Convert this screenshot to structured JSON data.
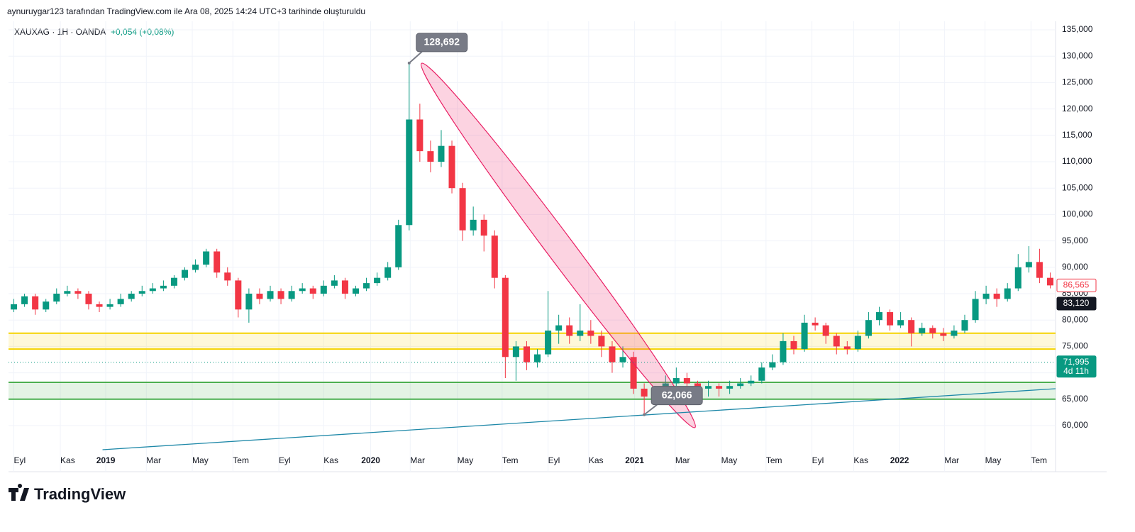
{
  "header": "aynuruygar123 tarafından TradingView.com ile Ara 08, 2025 14:24 UTC+3 tarihinde oluşturuldu",
  "logo": "TradingView",
  "chart_data": {
    "type": "candlestick",
    "title": "XAUXAG · 1H · OANDA",
    "change": "+0,054 (+0,08%)",
    "up_color": "#089981",
    "down_color": "#f23645",
    "xlim": [
      -0.5,
      97.5
    ],
    "ylim": [
      51263,
      136613
    ],
    "yticks": [
      {
        "value": 60000,
        "label": "60,000"
      },
      {
        "value": 65000,
        "label": "65,000"
      },
      {
        "value": 70000,
        "label": "70,000"
      },
      {
        "value": 75000,
        "label": "75,000"
      },
      {
        "value": 80000,
        "label": "80,000"
      },
      {
        "value": 85000,
        "label": "85,000"
      },
      {
        "value": 90000,
        "label": "90,000"
      },
      {
        "value": 95000,
        "label": "95,000"
      },
      {
        "value": 100000,
        "label": "100,000"
      },
      {
        "value": 105000,
        "label": "105,000"
      },
      {
        "value": 110000,
        "label": "110,000"
      },
      {
        "value": 115000,
        "label": "115,000"
      },
      {
        "value": 120000,
        "label": "120,000"
      },
      {
        "value": 125000,
        "label": "125,000"
      },
      {
        "value": 130000,
        "label": "130,000"
      },
      {
        "value": 135000,
        "label": "135,000"
      }
    ],
    "xticks": [
      {
        "value": 0,
        "label": "Eyl"
      },
      {
        "value": 4.35,
        "label": "Kas"
      },
      {
        "value": 8.6,
        "label": "2019"
      },
      {
        "value": 12.4,
        "label": "Mar"
      },
      {
        "value": 16.7,
        "label": "May"
      },
      {
        "value": 20.5,
        "label": "Tem"
      },
      {
        "value": 24.8,
        "label": "Eyl"
      },
      {
        "value": 29,
        "label": "Kas"
      },
      {
        "value": 33.4,
        "label": "2020"
      },
      {
        "value": 37.1,
        "label": "Mar"
      },
      {
        "value": 41.5,
        "label": "May"
      },
      {
        "value": 45.7,
        "label": "Tem"
      },
      {
        "value": 50,
        "label": "Eyl"
      },
      {
        "value": 53.8,
        "label": "Kas"
      },
      {
        "value": 58.1,
        "label": "2021"
      },
      {
        "value": 61.9,
        "label": "Mar"
      },
      {
        "value": 66.2,
        "label": "May"
      },
      {
        "value": 70.4,
        "label": "Tem"
      },
      {
        "value": 74.7,
        "label": "Eyl"
      },
      {
        "value": 78.6,
        "label": "Kas"
      },
      {
        "value": 82.9,
        "label": "2022"
      },
      {
        "value": 87.1,
        "label": "Mar"
      },
      {
        "value": 90.9,
        "label": "May"
      },
      {
        "value": 95.2,
        "label": "Tem"
      }
    ],
    "grid": true,
    "ohlc": [
      [
        82000,
        84000,
        81500,
        83000
      ],
      [
        83000,
        85000,
        82500,
        84500
      ],
      [
        84500,
        85000,
        81000,
        82000
      ],
      [
        82000,
        84000,
        81500,
        83500
      ],
      [
        83500,
        86000,
        83000,
        85000
      ],
      [
        85000,
        86500,
        84500,
        85500
      ],
      [
        85500,
        86000,
        84000,
        85000
      ],
      [
        85000,
        85500,
        82000,
        83000
      ],
      [
        83000,
        83500,
        81500,
        82500
      ],
      [
        82500,
        84000,
        82000,
        83000
      ],
      [
        83000,
        85000,
        82500,
        84000
      ],
      [
        84000,
        85500,
        83500,
        85000
      ],
      [
        85000,
        86500,
        84500,
        85500
      ],
      [
        85500,
        87000,
        85000,
        86000
      ],
      [
        86000,
        87500,
        85500,
        86500
      ],
      [
        86500,
        88500,
        86000,
        88000
      ],
      [
        88000,
        90000,
        87500,
        89500
      ],
      [
        89500,
        91500,
        89000,
        90500
      ],
      [
        90500,
        93500,
        90000,
        93000
      ],
      [
        93000,
        93500,
        88000,
        89000
      ],
      [
        89000,
        90000,
        86500,
        87500
      ],
      [
        87500,
        88000,
        80500,
        82000
      ],
      [
        82000,
        86000,
        79500,
        85000
      ],
      [
        85000,
        86000,
        83000,
        84000
      ],
      [
        84000,
        86500,
        83500,
        85500
      ],
      [
        85500,
        86000,
        83000,
        84000
      ],
      [
        84000,
        86500,
        83500,
        85500
      ],
      [
        85500,
        87000,
        85000,
        86000
      ],
      [
        86000,
        86500,
        84000,
        85000
      ],
      [
        85000,
        87500,
        84500,
        86500
      ],
      [
        86500,
        88500,
        86000,
        87500
      ],
      [
        87500,
        88000,
        84000,
        85000
      ],
      [
        85000,
        86500,
        84500,
        86000
      ],
      [
        86000,
        88000,
        85500,
        87000
      ],
      [
        87000,
        89000,
        86500,
        88000
      ],
      [
        88000,
        91000,
        87500,
        90000
      ],
      [
        90000,
        99000,
        89500,
        98000
      ],
      [
        98000,
        128692,
        97000,
        118000
      ],
      [
        118000,
        121000,
        110000,
        112000
      ],
      [
        112000,
        114000,
        108000,
        110000
      ],
      [
        110000,
        116000,
        109000,
        113000
      ],
      [
        113000,
        114000,
        104000,
        105000
      ],
      [
        105000,
        106000,
        95000,
        97000
      ],
      [
        97000,
        101500,
        96000,
        99000
      ],
      [
        99000,
        100000,
        93000,
        96000
      ],
      [
        96000,
        97000,
        86000,
        88000
      ],
      [
        88000,
        88500,
        69000,
        73000
      ],
      [
        73000,
        76000,
        68500,
        75000
      ],
      [
        75000,
        76000,
        70500,
        72000
      ],
      [
        72000,
        74500,
        71000,
        73500
      ],
      [
        73500,
        85500,
        73000,
        78000
      ],
      [
        78000,
        81000,
        75500,
        79000
      ],
      [
        79000,
        80500,
        75500,
        77000
      ],
      [
        77000,
        83000,
        76000,
        78000
      ],
      [
        78000,
        80000,
        75500,
        77000
      ],
      [
        77000,
        78000,
        73000,
        75000
      ],
      [
        75000,
        76000,
        70000,
        72000
      ],
      [
        72000,
        75000,
        71000,
        73000
      ],
      [
        73000,
        74000,
        66000,
        67000
      ],
      [
        67000,
        68000,
        62066,
        65500
      ],
      [
        65500,
        67500,
        64500,
        66000
      ],
      [
        66000,
        69500,
        65500,
        68000
      ],
      [
        68000,
        71000,
        67500,
        69000
      ],
      [
        69000,
        70000,
        67000,
        68000
      ],
      [
        68000,
        68500,
        65500,
        67000
      ],
      [
        67000,
        68500,
        65500,
        67500
      ],
      [
        67500,
        68000,
        65500,
        67000
      ],
      [
        67000,
        68500,
        66000,
        67500
      ],
      [
        67500,
        69000,
        67000,
        68000
      ],
      [
        68000,
        69500,
        67500,
        68500
      ],
      [
        68500,
        72000,
        68000,
        71000
      ],
      [
        71000,
        73500,
        70500,
        72000
      ],
      [
        72000,
        77500,
        71500,
        76000
      ],
      [
        76000,
        77000,
        73500,
        74500
      ],
      [
        74500,
        81000,
        74000,
        79500
      ],
      [
        79500,
        80500,
        78000,
        79000
      ],
      [
        79000,
        79500,
        75500,
        77000
      ],
      [
        77000,
        77500,
        73500,
        75000
      ],
      [
        75000,
        76000,
        73500,
        74500
      ],
      [
        74500,
        78000,
        74000,
        77000
      ],
      [
        77000,
        81500,
        76500,
        80000
      ],
      [
        80000,
        82500,
        79000,
        81500
      ],
      [
        81500,
        82000,
        78000,
        79000
      ],
      [
        79000,
        81500,
        78500,
        80000
      ],
      [
        80000,
        80500,
        75000,
        77500
      ],
      [
        77500,
        79500,
        77000,
        78500
      ],
      [
        78500,
        79000,
        76500,
        77500
      ],
      [
        77500,
        78500,
        76000,
        77000
      ],
      [
        77000,
        79000,
        76500,
        78000
      ],
      [
        78000,
        81000,
        77500,
        80000
      ],
      [
        80000,
        85500,
        79500,
        84000
      ],
      [
        84000,
        86500,
        83000,
        85000
      ],
      [
        85000,
        86000,
        82500,
        84000
      ],
      [
        84000,
        87000,
        83500,
        86000
      ],
      [
        86000,
        92500,
        85500,
        90000
      ],
      [
        90000,
        94000,
        89000,
        91000
      ],
      [
        91000,
        93500,
        87000,
        88000
      ],
      [
        88000,
        89000,
        86000,
        86565
      ]
    ],
    "callouts": [
      {
        "x": 37,
        "value": 128692,
        "label": "128,692"
      },
      {
        "x": 59,
        "value": 62066,
        "label": "62,066"
      }
    ],
    "zones": [
      {
        "from": 74500,
        "to": 77500,
        "color": "#f5d300"
      },
      {
        "from": 65000,
        "to": 68200,
        "color": "#4caf50"
      }
    ],
    "trendline": {
      "x": [
        8.3,
        97.5
      ],
      "y": [
        55430,
        66990
      ],
      "color": "#1e88a8"
    },
    "price_labels": [
      {
        "value": 86565,
        "label": "86,565",
        "color": "#f23645",
        "style": "outline"
      },
      {
        "value": 83120,
        "label": "83,120",
        "color": "#131722",
        "style": "solid"
      },
      {
        "value": 71995,
        "label": "71,995",
        "sub": "4d 11h",
        "color": "#089981",
        "style": "solid"
      }
    ]
  }
}
